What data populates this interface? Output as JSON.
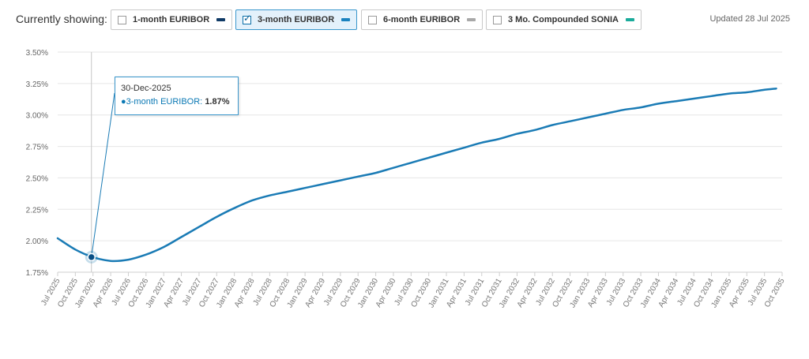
{
  "header": {
    "label": "Currently showing:",
    "updated": "Updated 28 Jul 2025",
    "toggles": [
      {
        "label": "1-month EURIBOR",
        "color": "#0f3a66",
        "checked": false
      },
      {
        "label": "3-month EURIBOR",
        "color": "#1a82bf",
        "checked": true
      },
      {
        "label": "6-month EURIBOR",
        "color": "#a8a8a8",
        "checked": false
      },
      {
        "label": "3 Mo. Compounded SONIA",
        "color": "#1aab9b",
        "checked": false
      }
    ]
  },
  "tooltip": {
    "date": "30-Dec-2025",
    "series": "3-month EURIBOR:",
    "value": "1.87%"
  },
  "chart_data": {
    "type": "line",
    "ylim": [
      1.75,
      3.5
    ],
    "yticks": [
      "1.75%",
      "2.00%",
      "2.25%",
      "2.50%",
      "2.75%",
      "3.00%",
      "3.25%",
      "3.50%"
    ],
    "x_tick_labels": [
      "Jul 2025",
      "Oct 2025",
      "Jan 2026",
      "Apr 2026",
      "Jul 2026",
      "Oct 2026",
      "Jan 2027",
      "Apr 2027",
      "Jul 2027",
      "Oct 2027",
      "Jan 2028",
      "Apr 2028",
      "Jul 2028",
      "Oct 2028",
      "Jan 2029",
      "Apr 2029",
      "Jul 2029",
      "Oct 2029",
      "Jan 2030",
      "Apr 2030",
      "Jul 2030",
      "Oct 2030",
      "Jan 2031",
      "Apr 2031",
      "Jul 2031",
      "Oct 2031",
      "Jan 2032",
      "Apr 2032",
      "Jul 2032",
      "Oct 2032",
      "Jan 2033",
      "Apr 2033",
      "Jul 2033",
      "Oct 2033",
      "Jan 2034",
      "Apr 2034",
      "Jul 2034",
      "Oct 2034",
      "Jan 2035",
      "Apr 2035",
      "Jul 2035",
      "Oct 2035"
    ],
    "series": [
      {
        "name": "3-month EURIBOR",
        "color": "#1a7bb5",
        "points": [
          [
            "Jul 2025",
            2.02
          ],
          [
            "Oct 2025",
            1.93
          ],
          [
            "Jan 2026",
            1.87
          ],
          [
            "Apr 2026",
            1.84
          ],
          [
            "Jul 2026",
            1.85
          ],
          [
            "Oct 2026",
            1.89
          ],
          [
            "Jan 2027",
            1.95
          ],
          [
            "Apr 2027",
            2.03
          ],
          [
            "Jul 2027",
            2.11
          ],
          [
            "Oct 2027",
            2.19
          ],
          [
            "Jan 2028",
            2.26
          ],
          [
            "Apr 2028",
            2.32
          ],
          [
            "Jul 2028",
            2.36
          ],
          [
            "Oct 2028",
            2.39
          ],
          [
            "Jan 2029",
            2.42
          ],
          [
            "Apr 2029",
            2.45
          ],
          [
            "Jul 2029",
            2.48
          ],
          [
            "Oct 2029",
            2.51
          ],
          [
            "Jan 2030",
            2.54
          ],
          [
            "Apr 2030",
            2.58
          ],
          [
            "Jul 2030",
            2.62
          ],
          [
            "Oct 2030",
            2.66
          ],
          [
            "Jan 2031",
            2.7
          ],
          [
            "Apr 2031",
            2.74
          ],
          [
            "Jul 2031",
            2.78
          ],
          [
            "Oct 2031",
            2.81
          ],
          [
            "Jan 2032",
            2.85
          ],
          [
            "Apr 2032",
            2.88
          ],
          [
            "Jul 2032",
            2.92
          ],
          [
            "Oct 2032",
            2.95
          ],
          [
            "Jan 2033",
            2.98
          ],
          [
            "Apr 2033",
            3.01
          ],
          [
            "Jul 2033",
            3.04
          ],
          [
            "Oct 2033",
            3.06
          ],
          [
            "Jan 2034",
            3.09
          ],
          [
            "Apr 2034",
            3.11
          ],
          [
            "Jul 2034",
            3.13
          ],
          [
            "Oct 2034",
            3.15
          ],
          [
            "Jan 2035",
            3.17
          ],
          [
            "Apr 2035",
            3.18
          ],
          [
            "Jul 2035",
            3.2
          ],
          [
            "Sep 2035",
            3.21
          ]
        ]
      }
    ],
    "highlight": {
      "x": "30-Dec-2025",
      "y": 1.87
    },
    "grid": true,
    "legend": "top"
  }
}
